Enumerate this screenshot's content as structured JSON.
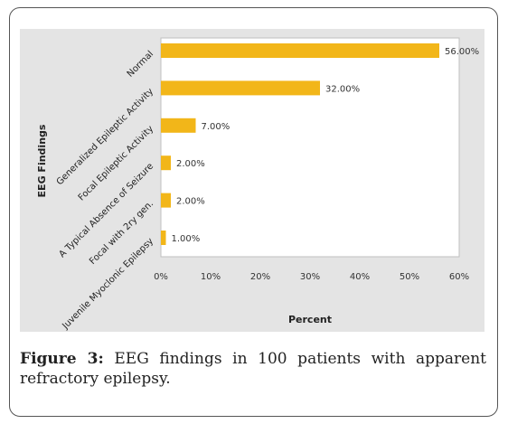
{
  "figure": {
    "caption_label": "Figure 3:",
    "caption_text": " EEG findings in 100 patients with apparent refractory epilepsy."
  },
  "chart_data": {
    "type": "bar",
    "orientation": "horizontal",
    "categories": [
      "Normal",
      "Generalized Epileptic Activity",
      "Focal Epileptic Activity",
      "A Typical Absence of Seizure",
      "Focal with 2ry gen.",
      "Juvenile Myoclonic Epilepsy"
    ],
    "values": [
      56,
      32,
      7,
      2,
      2,
      1
    ],
    "data_labels": [
      "56.00%",
      "32.00%",
      "7.00%",
      "2.00%",
      "2.00%",
      "1.00%"
    ],
    "xlabel": "Percent",
    "ylabel": "EEG Findings",
    "xlim": [
      0,
      60
    ],
    "xticks": [
      "0%",
      "10%",
      "20%",
      "30%",
      "40%",
      "50%",
      "60%"
    ],
    "bar_color": "#f2b619",
    "grid": false,
    "legend": "none"
  }
}
